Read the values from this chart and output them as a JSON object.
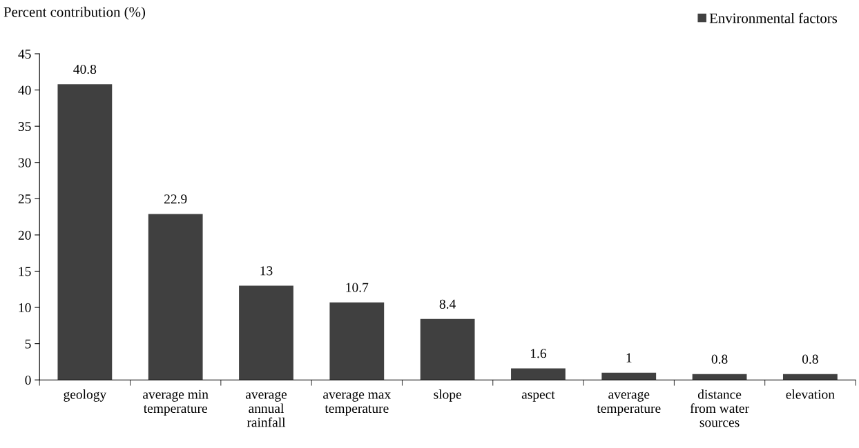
{
  "chart_data": {
    "type": "bar",
    "ylabel": "Percent contribution (%)",
    "categories": [
      "geology",
      "average min\ntemperature",
      "average\nannual\nrainfall",
      "average max\ntemperature",
      "slope",
      "aspect",
      "average\ntemperature",
      "distance\nfrom water\nsources",
      "elevation"
    ],
    "series": [
      {
        "name": "Environmental factors",
        "color": "#404040",
        "values": [
          40.8,
          22.9,
          13,
          10.7,
          8.4,
          1.6,
          1,
          0.8,
          0.8
        ]
      }
    ],
    "ylim": [
      0,
      45
    ],
    "yticks": [
      0,
      5,
      10,
      15,
      20,
      25,
      30,
      35,
      40,
      45
    ],
    "data_labels": true,
    "grid": false,
    "legend": "top right"
  }
}
